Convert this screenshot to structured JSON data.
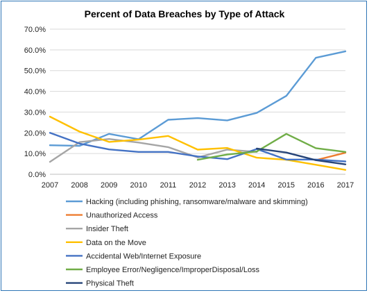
{
  "chart_data": {
    "type": "line",
    "title": "Percent of Data Breaches by Type of Attack",
    "xlabel": "",
    "ylabel": "",
    "ylim": [
      0,
      70
    ],
    "y_tick_labels": [
      "0.0%",
      "10.0%",
      "20.0%",
      "30.0%",
      "40.0%",
      "50.0%",
      "60.0%",
      "70.0%"
    ],
    "x": [
      "2007",
      "2008",
      "2009",
      "2010",
      "2011",
      "2012",
      "2013",
      "2014",
      "2015",
      "2016",
      "2017"
    ],
    "grid": true,
    "legend_position": "bottom",
    "series": [
      {
        "name": "Hacking (including phishing, ransomware/malware and skimming)",
        "color": "#5b9bd5",
        "values": [
          14.0,
          13.7,
          19.5,
          16.9,
          26.3,
          27.1,
          26.0,
          29.6,
          37.8,
          56.2,
          59.3
        ]
      },
      {
        "name": "Unauthorized Access",
        "color": "#ed7d31",
        "values": [
          null,
          null,
          null,
          null,
          null,
          null,
          null,
          null,
          null,
          6.8,
          10.4
        ]
      },
      {
        "name": "Insider Theft",
        "color": "#a5a5a5",
        "values": [
          6.0,
          15.5,
          17.0,
          15.3,
          13.1,
          8.1,
          11.9,
          10.8,
          null,
          null,
          null
        ]
      },
      {
        "name": "Data on the Move",
        "color": "#ffc000",
        "values": [
          27.8,
          20.6,
          15.6,
          16.7,
          18.5,
          11.9,
          12.7,
          8.0,
          7.0,
          4.6,
          2.1
        ]
      },
      {
        "name": "Accidental Web/Internet Exposure",
        "color": "#4472c4",
        "values": [
          20.0,
          14.8,
          12.0,
          10.8,
          10.8,
          8.6,
          7.3,
          12.2,
          7.1,
          7.1,
          6.2
        ]
      },
      {
        "name": "Employee Error/Negligence/ImproperDisposal/Loss",
        "color": "#70ad47",
        "values": [
          null,
          null,
          null,
          null,
          null,
          7.0,
          9.5,
          11.0,
          19.5,
          12.6,
          10.8
        ]
      },
      {
        "name": "Physical Theft",
        "color": "#264478",
        "values": [
          null,
          null,
          null,
          null,
          null,
          null,
          null,
          12.4,
          10.5,
          6.8,
          4.8
        ]
      }
    ]
  }
}
